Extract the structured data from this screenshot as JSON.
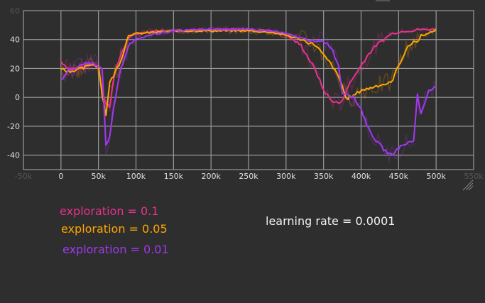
{
  "chart_data": {
    "type": "line",
    "title": "",
    "xlabel": "",
    "ylabel": "",
    "xlim": [
      -50000,
      550000
    ],
    "ylim": [
      -50,
      60
    ],
    "grid": true,
    "x_tick_labels": [
      "0",
      "50k",
      "100k",
      "150k",
      "200k",
      "250k",
      "300k",
      "350k",
      "400k",
      "450k",
      "500k"
    ],
    "x_tick_labels_faded": [
      "-50k",
      "550k"
    ],
    "y_tick_labels": [
      "40",
      "20",
      "0",
      "-20",
      "-40"
    ],
    "y_tick_labels_faded": [
      "60"
    ],
    "legend_position": "below chart",
    "x": [
      0,
      10000,
      20000,
      30000,
      40000,
      50000,
      55000,
      60000,
      65000,
      70000,
      80000,
      90000,
      100000,
      125000,
      150000,
      200000,
      250000,
      280000,
      300000,
      320000,
      330000,
      340000,
      350000,
      360000,
      370000,
      375000,
      380000,
      390000,
      400000,
      410000,
      420000,
      430000,
      440000,
      450000,
      460000,
      470000,
      475000,
      480000,
      490000,
      500000
    ],
    "series": [
      {
        "name": "exploration = 0.1",
        "color": "#e8318f",
        "values": [
          25,
          20,
          20,
          21,
          23,
          21,
          5,
          -5,
          -6,
          13,
          30,
          41,
          44,
          46,
          46,
          47,
          47,
          46,
          43,
          36,
          27,
          18,
          5,
          -2,
          -4,
          -3,
          5,
          14,
          22,
          30,
          36,
          40,
          44,
          45,
          46,
          46,
          47,
          47,
          47,
          47
        ]
      },
      {
        "name": "exploration = 0.05",
        "color": "#ffa500",
        "values": [
          20,
          18,
          19,
          20,
          23,
          22,
          2,
          -12,
          10,
          15,
          26,
          43,
          44,
          45,
          46,
          46,
          46,
          45,
          43,
          40,
          38,
          36,
          29,
          23,
          14,
          8,
          -1,
          1,
          5,
          6,
          8,
          9,
          10,
          22,
          33,
          39,
          38,
          43,
          44,
          47
        ]
      },
      {
        "name": "exploration = 0.01",
        "color": "#a238ef",
        "values": [
          11,
          19,
          20,
          23,
          24,
          22,
          21,
          -34,
          -28,
          -8,
          20,
          36,
          40,
          44,
          46,
          47,
          47,
          46,
          44,
          41,
          40,
          38,
          39,
          35,
          22,
          3,
          3,
          0,
          -8,
          -22,
          -30,
          -36,
          -40,
          -35,
          -32,
          -30,
          2,
          -12,
          5,
          8
        ]
      }
    ],
    "annotations": [
      "learning rate = 0.0001"
    ]
  },
  "legend": {
    "items": [
      {
        "label": "exploration = 0.1",
        "color": "#e8318f"
      },
      {
        "label": "exploration = 0.05",
        "color": "#ffa500"
      },
      {
        "label": "exploration = 0.01",
        "color": "#a238ef"
      }
    ]
  },
  "note": {
    "text": "learning rate = 0.0001"
  },
  "style": {
    "background": "#2e2e2e",
    "grid_color": "#9a9a9a",
    "tick_color": "#e0e0e0"
  }
}
